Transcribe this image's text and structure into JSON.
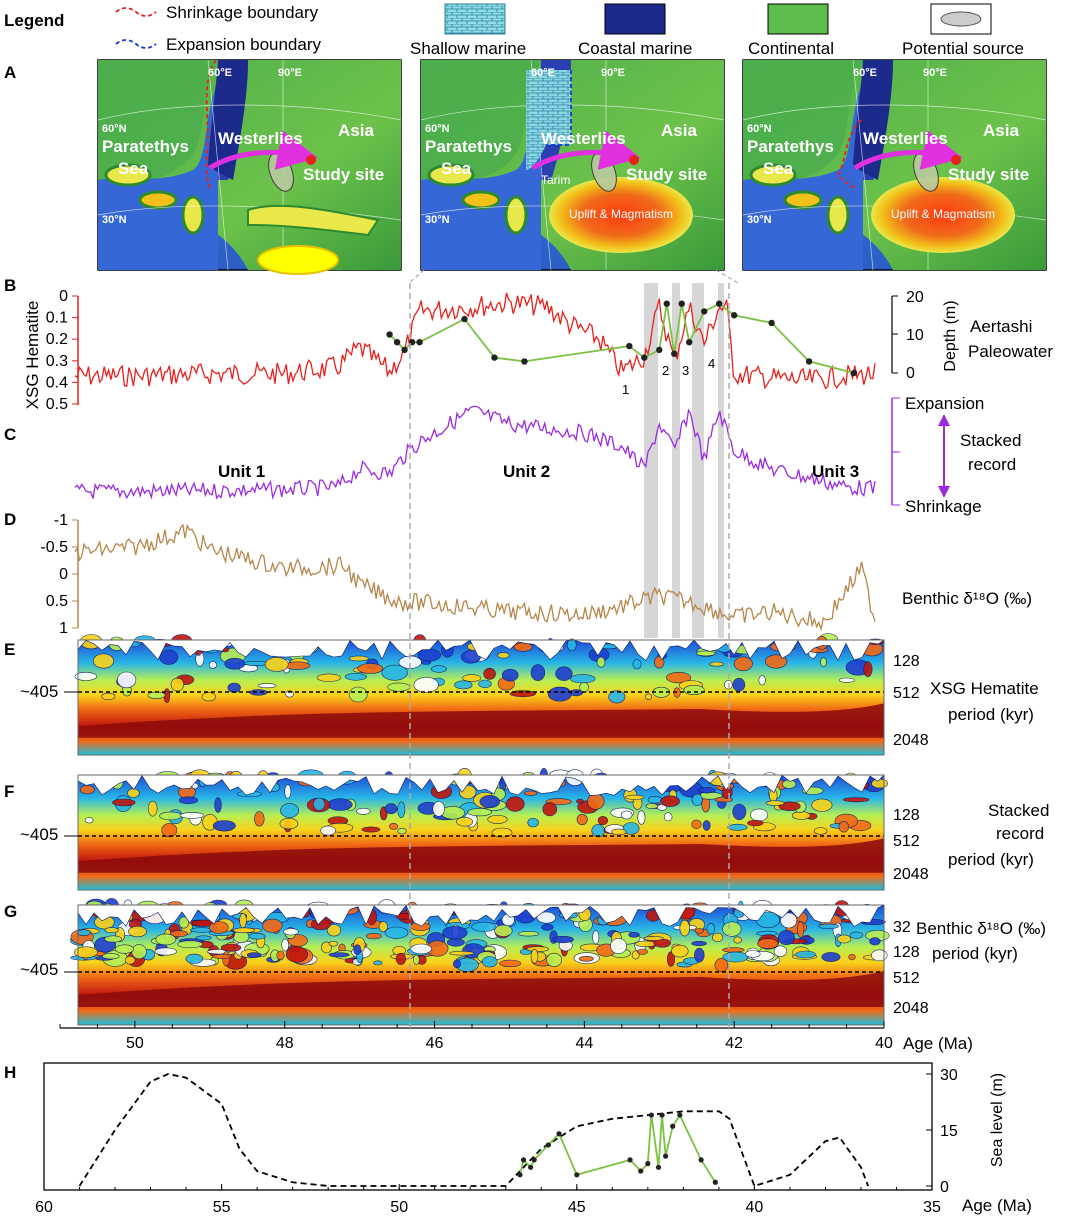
{
  "legend": {
    "title": "Legend",
    "shrinkage": "Shrinkage boundary",
    "expansion": "Expansion boundary",
    "shallow_marine": "Shallow marine",
    "coastal_marine": "Coastal marine",
    "continental": "Continental",
    "potential_source": "Potential source"
  },
  "panel_letters": [
    "A",
    "B",
    "C",
    "D",
    "E",
    "F",
    "G",
    "H"
  ],
  "maps": {
    "westerlies": "Westerlies",
    "asia": "Asia",
    "paratethys": "Paratethys",
    "sea": "Sea",
    "study_site": "Study site",
    "tarim": "Tarim",
    "uplift": "Uplift & Magmatism",
    "lon60": "60°E",
    "lon90": "90°E",
    "lat60": "60°N",
    "lat30": "30°N"
  },
  "colors": {
    "hematite": "#e8201c",
    "stacked": "#9a2be2",
    "benthic": "#b7864a",
    "aertashi": "#7cc242",
    "dashed": "#000000"
  },
  "axes": {
    "b_ylabel": "XSG Hematite",
    "b_ticks": [
      "0",
      "0.1",
      "0.2",
      "0.3",
      "0.4",
      "0.5"
    ],
    "b_right_ticks": [
      "20",
      "10",
      "0"
    ],
    "b_right_label": "Depth (m)",
    "b_right_title1": "Aertashi",
    "b_right_title2": "Paleowater",
    "c_top": "Expansion",
    "c_bottom": "Shrinkage",
    "c_title1": "Stacked",
    "c_title2": "record",
    "d_ticks": [
      "-1",
      "-0.5",
      "0",
      "0.5",
      "1"
    ],
    "d_title": "Benthic δ¹⁸O (‰)",
    "e_title1": "XSG Hematite",
    "e_title2": "period (kyr)",
    "f_title1": "Stacked",
    "f_title2": "record",
    "f_title3": "period (kyr)",
    "g_title1": "Benthic δ¹⁸O (‰)",
    "g_title2": "period (kyr)",
    "period_ticks_ef": [
      "128",
      "512",
      "2048"
    ],
    "period_ticks_g": [
      "32",
      "128",
      "512",
      "2048"
    ],
    "marker_405": "~405",
    "age_ticks": [
      "50",
      "48",
      "46",
      "44",
      "42",
      "40"
    ],
    "age_label": "Age (Ma)",
    "h_ticks": [
      "60",
      "55",
      "50",
      "45",
      "40",
      "35"
    ],
    "h_yticks": [
      "30",
      "15",
      "0"
    ],
    "h_ylabel": "Sea level (m)",
    "h_xlabel": "Age (Ma)"
  },
  "units": [
    "Unit 1",
    "Unit 2",
    "Unit 3"
  ],
  "event_numbers": [
    "1",
    "2",
    "3",
    "4"
  ],
  "chart_data": [
    {
      "type": "line",
      "panel": "B",
      "title": "",
      "xlabel": "Age (Ma)",
      "ylabel": "XSG Hematite",
      "xlim": [
        51,
        40
      ],
      "ylim": [
        0.5,
        0
      ],
      "series": [
        {
          "name": "XSG Hematite",
          "x": [
            50.8,
            50,
            49,
            48,
            47.3,
            47,
            46.6,
            46.4,
            46.2,
            45.5,
            45,
            44.5,
            44.2,
            43.8,
            43.5,
            43.2,
            43,
            42.8,
            42.6,
            42.4,
            42.2,
            42.1,
            42,
            41.5,
            41,
            40.5,
            40.1
          ],
          "y": [
            0.37,
            0.37,
            0.36,
            0.36,
            0.33,
            0.24,
            0.35,
            0.26,
            0.07,
            0.05,
            0.03,
            0.05,
            0.13,
            0.2,
            0.35,
            0.28,
            0.05,
            0.3,
            0.05,
            0.22,
            0.05,
            0.06,
            0.36,
            0.38,
            0.39,
            0.37,
            0.36
          ]
        }
      ]
    },
    {
      "type": "scatter",
      "panel": "B",
      "title": "",
      "xlabel": "Age (Ma)",
      "ylabel": "Depth (m)",
      "xlim": [
        51,
        40
      ],
      "ylim": [
        0,
        20
      ],
      "series": [
        {
          "name": "Aertashi Paleowater",
          "x": [
            46.6,
            46.5,
            46.4,
            46.3,
            46.2,
            45.6,
            45.2,
            44.8,
            43.4,
            43.2,
            43.0,
            42.9,
            42.8,
            42.7,
            42.6,
            42.4,
            42.2,
            42.0,
            41.5,
            41.0,
            40.4
          ],
          "y": [
            10,
            8,
            6,
            8,
            8,
            14,
            4,
            3,
            7,
            4,
            6,
            18,
            5,
            18,
            8,
            16,
            18,
            15,
            13,
            3,
            0
          ]
        }
      ]
    },
    {
      "type": "line",
      "panel": "C",
      "title": "",
      "xlabel": "Age (Ma)",
      "ylabel": "",
      "xlim": [
        51,
        40
      ],
      "series": [
        {
          "name": "Stacked record",
          "x": [
            50.8,
            50,
            49,
            48,
            47.3,
            47,
            46.6,
            46.4,
            46.2,
            45.5,
            45,
            44.5,
            44,
            43.5,
            43.2,
            43,
            42.8,
            42.6,
            42.4,
            42.2,
            42,
            41.5,
            41,
            40.5,
            40.1
          ],
          "y": [
            0.05,
            0.05,
            0.06,
            0.07,
            0.1,
            0.3,
            0.25,
            0.45,
            0.6,
            0.95,
            0.8,
            0.75,
            0.7,
            0.55,
            0.3,
            0.8,
            0.5,
            0.95,
            0.4,
            0.95,
            0.5,
            0.3,
            0.2,
            0.1,
            0.08
          ]
        }
      ]
    },
    {
      "type": "line",
      "panel": "D",
      "title": "",
      "xlabel": "Age (Ma)",
      "ylabel": "Benthic δ18O (‰)",
      "xlim": [
        51,
        40
      ],
      "ylim": [
        1,
        -1
      ],
      "series": [
        {
          "name": "Benthic δ18O",
          "x": [
            50.8,
            50,
            49.3,
            49,
            48,
            47.2,
            47,
            46.5,
            46,
            45,
            44,
            43.5,
            43,
            42.5,
            42,
            41.5,
            41,
            40.8,
            40.3,
            40.1
          ],
          "y": [
            -0.4,
            -0.5,
            -0.8,
            -0.45,
            -0.1,
            -0.15,
            0.2,
            0.5,
            0.55,
            0.7,
            0.75,
            0.6,
            0.4,
            0.55,
            0.8,
            0.7,
            0.85,
            0.9,
            -0.1,
            0.95
          ]
        }
      ]
    },
    {
      "type": "line",
      "panel": "H",
      "title": "",
      "xlabel": "Age (Ma)",
      "ylabel": "Sea level (m)",
      "xlim": [
        60,
        35
      ],
      "ylim": [
        0,
        30
      ],
      "series": [
        {
          "name": "Sea level (dashed)",
          "x": [
            59,
            58,
            57,
            56.5,
            56,
            55,
            54.5,
            54,
            53,
            52,
            50,
            48,
            47,
            46,
            45,
            44,
            43,
            42,
            41,
            40.7,
            40,
            39,
            38,
            37.6,
            37,
            36.8
          ],
          "y": [
            0,
            15,
            28,
            30,
            29,
            22,
            10,
            4,
            1,
            0,
            0,
            0,
            0,
            10,
            16,
            18,
            19,
            20,
            20,
            18,
            0,
            3,
            12,
            13,
            5,
            0
          ]
        },
        {
          "name": "Aertashi Paleowater",
          "x": [
            46.6,
            46.5,
            46.3,
            46.2,
            45.8,
            45.5,
            45,
            43.5,
            43.2,
            43,
            42.9,
            42.7,
            42.6,
            42.5,
            42.3,
            42.1,
            41.5,
            41.1
          ],
          "y": [
            3,
            7,
            5,
            7,
            11,
            14,
            3,
            7,
            4,
            6,
            19,
            5,
            19,
            8,
            16,
            19,
            7,
            1
          ]
        }
      ]
    }
  ]
}
